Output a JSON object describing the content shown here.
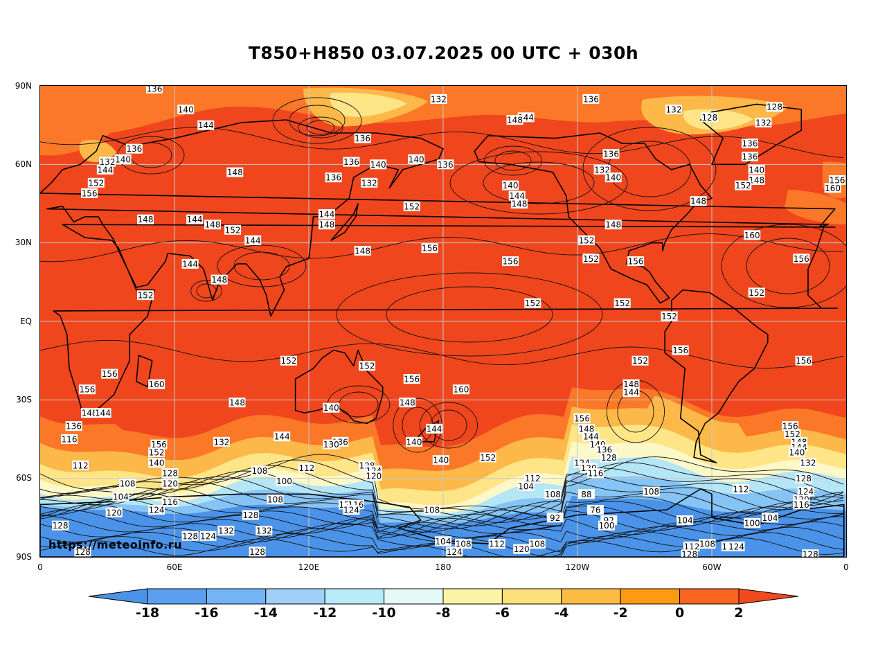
{
  "title": "T850+H850 03.07.2025 00 UTC + 030h",
  "credit": "https://meteoinfo.ru",
  "lat_axis": [
    "90N",
    "60N",
    "30N",
    "EQ",
    "30S",
    "60S",
    "90S"
  ],
  "lon_axis": [
    "0",
    "60E",
    "120E",
    "180",
    "120W",
    "60W",
    "0"
  ],
  "colorbar": {
    "ticks": [
      "-18",
      "-16",
      "-14",
      "-12",
      "-10",
      "-8",
      "-6",
      "-4",
      "-2",
      "0",
      "2"
    ],
    "colors": [
      "#4b93e8",
      "#5ba0f0",
      "#74b4f4",
      "#a0d0f8",
      "#b8ecf8",
      "#e6fafa",
      "#fcf4a4",
      "#fde07a",
      "#fcbc44",
      "#fd9a14",
      "#fb6420",
      "#f04a1e"
    ]
  },
  "map_colors": {
    "warm": "#f0461e",
    "band1": "#fb7828",
    "band2": "#fcb848",
    "band3": "#fde588",
    "band4": "#fcf8c8",
    "cold1": "#b5e6f6",
    "cold2": "#86c4f6",
    "cold3": "#4b93e8"
  },
  "contour_labels": [
    {
      "t": "136",
      "lon": 51,
      "lat": 89
    },
    {
      "t": "140",
      "lon": 65,
      "lat": 81
    },
    {
      "t": "144",
      "lon": 74,
      "lat": 75
    },
    {
      "t": "132",
      "lon": 178,
      "lat": 85
    },
    {
      "t": "136",
      "lon": 246,
      "lat": 85
    },
    {
      "t": "144",
      "lon": 217,
      "lat": 78
    },
    {
      "t": "148",
      "lon": 212,
      "lat": 77
    },
    {
      "t": "132",
      "lon": 283,
      "lat": 81
    },
    {
      "t": "128",
      "lon": 299,
      "lat": 78
    },
    {
      "t": "128",
      "lon": 328,
      "lat": 82
    },
    {
      "t": "132",
      "lon": 323,
      "lat": 76
    },
    {
      "t": "136",
      "lon": 42,
      "lat": 66
    },
    {
      "t": "140",
      "lon": 37,
      "lat": 62
    },
    {
      "t": "132",
      "lon": 30,
      "lat": 61
    },
    {
      "t": "144",
      "lon": 29,
      "lat": 58
    },
    {
      "t": "152",
      "lon": 25,
      "lat": 53
    },
    {
      "t": "156",
      "lon": 22,
      "lat": 49
    },
    {
      "t": "148",
      "lon": 87,
      "lat": 57
    },
    {
      "t": "136",
      "lon": 144,
      "lat": 70
    },
    {
      "t": "136",
      "lon": 139,
      "lat": 61
    },
    {
      "t": "140",
      "lon": 151,
      "lat": 60
    },
    {
      "t": "136",
      "lon": 131,
      "lat": 55
    },
    {
      "t": "132",
      "lon": 147,
      "lat": 53
    },
    {
      "t": "140",
      "lon": 168,
      "lat": 62
    },
    {
      "t": "136",
      "lon": 181,
      "lat": 60
    },
    {
      "t": "140",
      "lon": 210,
      "lat": 52
    },
    {
      "t": "144",
      "lon": 213,
      "lat": 48
    },
    {
      "t": "148",
      "lon": 214,
      "lat": 45
    },
    {
      "t": "152",
      "lon": 166,
      "lat": 44
    },
    {
      "t": "136",
      "lon": 255,
      "lat": 64
    },
    {
      "t": "132",
      "lon": 251,
      "lat": 58
    },
    {
      "t": "140",
      "lon": 256,
      "lat": 55
    },
    {
      "t": "136",
      "lon": 317,
      "lat": 68
    },
    {
      "t": "136",
      "lon": 317,
      "lat": 63
    },
    {
      "t": "140",
      "lon": 320,
      "lat": 58
    },
    {
      "t": "148",
      "lon": 320,
      "lat": 54
    },
    {
      "t": "152",
      "lon": 314,
      "lat": 52
    },
    {
      "t": "160",
      "lon": 354,
      "lat": 51
    },
    {
      "t": "156",
      "lon": 356,
      "lat": 54
    },
    {
      "t": "148",
      "lon": 294,
      "lat": 46
    },
    {
      "t": "148",
      "lon": 47,
      "lat": 39
    },
    {
      "t": "144",
      "lon": 69,
      "lat": 39
    },
    {
      "t": "148",
      "lon": 77,
      "lat": 37
    },
    {
      "t": "152",
      "lon": 86,
      "lat": 35
    },
    {
      "t": "144",
      "lon": 95,
      "lat": 31
    },
    {
      "t": "144",
      "lon": 128,
      "lat": 41
    },
    {
      "t": "148",
      "lon": 128,
      "lat": 37
    },
    {
      "t": "148",
      "lon": 144,
      "lat": 27
    },
    {
      "t": "156",
      "lon": 174,
      "lat": 28
    },
    {
      "t": "156",
      "lon": 210,
      "lat": 23
    },
    {
      "t": "148",
      "lon": 256,
      "lat": 37
    },
    {
      "t": "152",
      "lon": 244,
      "lat": 31
    },
    {
      "t": "152",
      "lon": 246,
      "lat": 24
    },
    {
      "t": "156",
      "lon": 266,
      "lat": 23
    },
    {
      "t": "160",
      "lon": 318,
      "lat": 33
    },
    {
      "t": "156",
      "lon": 340,
      "lat": 24
    },
    {
      "t": "144",
      "lon": 67,
      "lat": 22
    },
    {
      "t": "148",
      "lon": 80,
      "lat": 16
    },
    {
      "t": "152",
      "lon": 47,
      "lat": 10
    },
    {
      "t": "152",
      "lon": 220,
      "lat": 7
    },
    {
      "t": "152",
      "lon": 260,
      "lat": 7
    },
    {
      "t": "152",
      "lon": 281,
      "lat": 2
    },
    {
      "t": "152",
      "lon": 320,
      "lat": 11
    },
    {
      "t": "152",
      "lon": 111,
      "lat": -15
    },
    {
      "t": "152",
      "lon": 146,
      "lat": -17
    },
    {
      "t": "156",
      "lon": 166,
      "lat": -22
    },
    {
      "t": "160",
      "lon": 188,
      "lat": -26
    },
    {
      "t": "152",
      "lon": 268,
      "lat": -15
    },
    {
      "t": "156",
      "lon": 286,
      "lat": -11
    },
    {
      "t": "156",
      "lon": 341,
      "lat": -15
    },
    {
      "t": "148",
      "lon": 264,
      "lat": -24
    },
    {
      "t": "144",
      "lon": 264,
      "lat": -27
    },
    {
      "t": "156",
      "lon": 31,
      "lat": -20
    },
    {
      "t": "156",
      "lon": 21,
      "lat": -26
    },
    {
      "t": "160",
      "lon": 52,
      "lat": -24
    },
    {
      "t": "148",
      "lon": 88,
      "lat": -31
    },
    {
      "t": "148",
      "lon": 164,
      "lat": -31
    },
    {
      "t": "140",
      "lon": 130,
      "lat": -33
    },
    {
      "t": "148",
      "lon": 22,
      "lat": -35
    },
    {
      "t": "144",
      "lon": 28,
      "lat": -35
    },
    {
      "t": "136",
      "lon": 15,
      "lat": -40
    },
    {
      "t": "116",
      "lon": 13,
      "lat": -45
    },
    {
      "t": "144",
      "lon": 108,
      "lat": -44
    },
    {
      "t": "132",
      "lon": 81,
      "lat": -46
    },
    {
      "t": "136",
      "lon": 134,
      "lat": -46
    },
    {
      "t": "130",
      "lon": 130,
      "lat": -47
    },
    {
      "t": "144",
      "lon": 176,
      "lat": -41
    },
    {
      "t": "140",
      "lon": 167,
      "lat": -46
    },
    {
      "t": "140",
      "lon": 179,
      "lat": -53
    },
    {
      "t": "152",
      "lon": 200,
      "lat": -52
    },
    {
      "t": "156",
      "lon": 242,
      "lat": -37
    },
    {
      "t": "148",
      "lon": 244,
      "lat": -41
    },
    {
      "t": "144",
      "lon": 246,
      "lat": -44
    },
    {
      "t": "140",
      "lon": 249,
      "lat": -47
    },
    {
      "t": "136",
      "lon": 252,
      "lat": -49
    },
    {
      "t": "128",
      "lon": 254,
      "lat": -52
    },
    {
      "t": "124",
      "lon": 242,
      "lat": -54
    },
    {
      "t": "120",
      "lon": 245,
      "lat": -56
    },
    {
      "t": "116",
      "lon": 248,
      "lat": -58
    },
    {
      "t": "156",
      "lon": 335,
      "lat": -40
    },
    {
      "t": "152",
      "lon": 336,
      "lat": -43
    },
    {
      "t": "148",
      "lon": 339,
      "lat": -46
    },
    {
      "t": "144",
      "lon": 339,
      "lat": -48
    },
    {
      "t": "140",
      "lon": 338,
      "lat": -50
    },
    {
      "t": "132",
      "lon": 343,
      "lat": -54
    },
    {
      "t": "156",
      "lon": 53,
      "lat": -47
    },
    {
      "t": "152",
      "lon": 52,
      "lat": -50
    },
    {
      "t": "140",
      "lon": 52,
      "lat": -54
    },
    {
      "t": "112",
      "lon": 18,
      "lat": -55
    },
    {
      "t": "128",
      "lon": 58,
      "lat": -58
    },
    {
      "t": "120",
      "lon": 58,
      "lat": -62
    },
    {
      "t": "108",
      "lon": 39,
      "lat": -62
    },
    {
      "t": "104",
      "lon": 36,
      "lat": -67
    },
    {
      "t": "116",
      "lon": 58,
      "lat": -69
    },
    {
      "t": "124",
      "lon": 52,
      "lat": -72
    },
    {
      "t": "120",
      "lon": 33,
      "lat": -73
    },
    {
      "t": "108",
      "lon": 98,
      "lat": -57
    },
    {
      "t": "100",
      "lon": 109,
      "lat": -61
    },
    {
      "t": "112",
      "lon": 119,
      "lat": -56
    },
    {
      "t": "108",
      "lon": 105,
      "lat": -68
    },
    {
      "t": "128",
      "lon": 146,
      "lat": -55
    },
    {
      "t": "124",
      "lon": 149,
      "lat": -57
    },
    {
      "t": "120",
      "lon": 149,
      "lat": -59
    },
    {
      "t": "120",
      "lon": 137,
      "lat": -70
    },
    {
      "t": "116",
      "lon": 141,
      "lat": -70
    },
    {
      "t": "124",
      "lon": 139,
      "lat": -72
    },
    {
      "t": "108",
      "lon": 175,
      "lat": -72
    },
    {
      "t": "112",
      "lon": 220,
      "lat": -60
    },
    {
      "t": "104",
      "lon": 217,
      "lat": -63
    },
    {
      "t": "108",
      "lon": 229,
      "lat": -66
    },
    {
      "t": "88",
      "lon": 244,
      "lat": -66
    },
    {
      "t": "76",
      "lon": 248,
      "lat": -72
    },
    {
      "t": "92",
      "lon": 230,
      "lat": -75
    },
    {
      "t": "92",
      "lon": 254,
      "lat": -76
    },
    {
      "t": "100",
      "lon": 253,
      "lat": -78
    },
    {
      "t": "108",
      "lon": 273,
      "lat": -65
    },
    {
      "t": "104",
      "lon": 288,
      "lat": -76
    },
    {
      "t": "112",
      "lon": 313,
      "lat": -64
    },
    {
      "t": "128",
      "lon": 341,
      "lat": -60
    },
    {
      "t": "124",
      "lon": 342,
      "lat": -65
    },
    {
      "t": "120",
      "lon": 340,
      "lat": -68
    },
    {
      "t": "116",
      "lon": 340,
      "lat": -70
    },
    {
      "t": "104",
      "lon": 326,
      "lat": -75
    },
    {
      "t": "100",
      "lon": 318,
      "lat": -77
    },
    {
      "t": "128",
      "lon": 9,
      "lat": -78
    },
    {
      "t": "128",
      "lon": 67,
      "lat": -82
    },
    {
      "t": "124",
      "lon": 75,
      "lat": -82
    },
    {
      "t": "132",
      "lon": 83,
      "lat": -80
    },
    {
      "t": "132",
      "lon": 100,
      "lat": -80
    },
    {
      "t": "128",
      "lon": 94,
      "lat": -74
    },
    {
      "t": "128",
      "lon": 97,
      "lat": -88
    },
    {
      "t": "128",
      "lon": 19,
      "lat": -88
    },
    {
      "t": "104",
      "lon": 180,
      "lat": -84
    },
    {
      "t": "108",
      "lon": 189,
      "lat": -85
    },
    {
      "t": "124",
      "lon": 185,
      "lat": -88
    },
    {
      "t": "112",
      "lon": 204,
      "lat": -85
    },
    {
      "t": "120",
      "lon": 215,
      "lat": -87
    },
    {
      "t": "108",
      "lon": 222,
      "lat": -85
    },
    {
      "t": "112",
      "lon": 291,
      "lat": -86
    },
    {
      "t": "108",
      "lon": 298,
      "lat": -85
    },
    {
      "t": "112",
      "lon": 308,
      "lat": -86
    },
    {
      "t": "124",
      "lon": 311,
      "lat": -86
    },
    {
      "t": "128",
      "lon": 290,
      "lat": -89
    },
    {
      "t": "128",
      "lon": 344,
      "lat": -89
    }
  ]
}
